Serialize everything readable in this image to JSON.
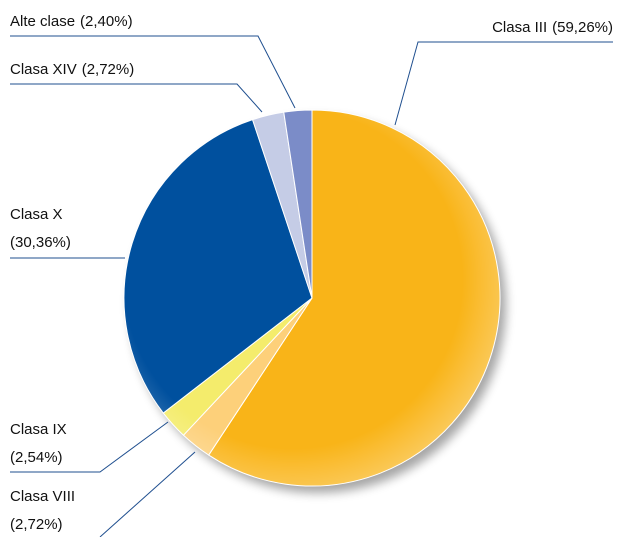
{
  "chart_data": {
    "type": "pie",
    "categories": [
      "Clasa III",
      "Clasa VIII",
      "Clasa IX",
      "Clasa X",
      "Clasa XIV",
      "Alte clase"
    ],
    "values": [
      59.26,
      2.72,
      2.54,
      30.36,
      2.72,
      2.4
    ],
    "value_labels": [
      "(59,26%)",
      "(2,72%)",
      "(2,54%)",
      "(30,36%)",
      "(2,72%)",
      "(2,40%)"
    ],
    "colors": [
      "#f9b418",
      "#fdd07a",
      "#f4ec6c",
      "#00509e",
      "#c5cce6",
      "#7b8cc8"
    ]
  }
}
